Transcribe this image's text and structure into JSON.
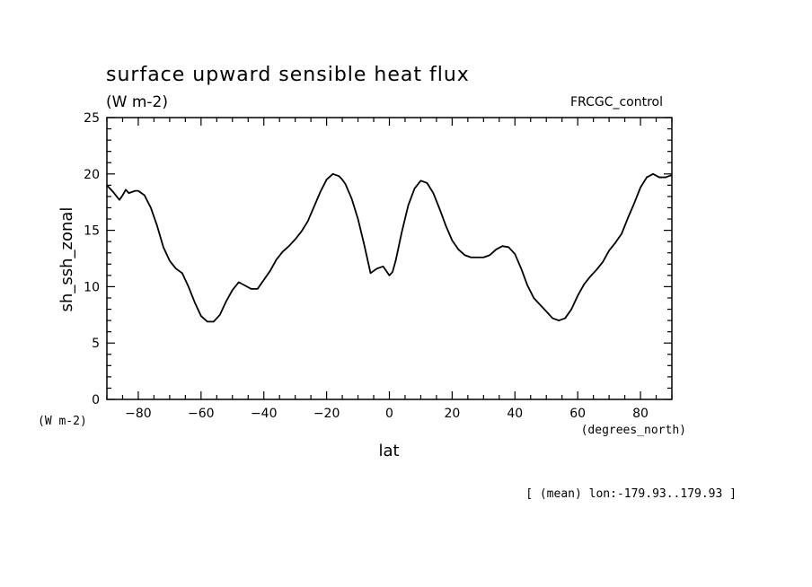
{
  "chart_data": {
    "type": "line",
    "title": "surface upward sensible heat flux",
    "subtitle": "(W m-2)",
    "annotation_right": "FRCGC_control",
    "ylabel": "sh_ssh_zonal",
    "yunit": "(W m-2)",
    "xlabel": "lat",
    "xunit": "(degrees_north)",
    "footnote": "[ (mean) lon:-179.93..179.93 ]",
    "xlim": [
      -90,
      90
    ],
    "ylim": [
      0,
      25
    ],
    "x_ticks": [
      -80,
      -60,
      -40,
      -20,
      0,
      20,
      40,
      60,
      80
    ],
    "y_ticks": [
      0,
      5,
      10,
      15,
      20,
      25
    ],
    "grid": false,
    "series": [
      {
        "x": [
          -90,
          -88,
          -86,
          -85,
          -84,
          -83,
          -82,
          -81,
          -80,
          -78,
          -76,
          -74,
          -72,
          -70,
          -68,
          -66,
          -64,
          -62,
          -60,
          -58,
          -56,
          -54,
          -52,
          -50,
          -48,
          -46,
          -44,
          -42,
          -40,
          -38,
          -36,
          -34,
          -32,
          -30,
          -28,
          -26,
          -24,
          -22,
          -20,
          -18,
          -16,
          -15,
          -14,
          -12,
          -10,
          -8,
          -6,
          -4,
          -2,
          0,
          1,
          2,
          4,
          6,
          8,
          10,
          12,
          14,
          16,
          18,
          20,
          22,
          24,
          26,
          28,
          30,
          32,
          34,
          36,
          38,
          40,
          42,
          44,
          46,
          48,
          50,
          52,
          54,
          56,
          58,
          60,
          62,
          64,
          66,
          68,
          70,
          72,
          74,
          76,
          78,
          80,
          82,
          84,
          86,
          88,
          90
        ],
        "y": [
          19.0,
          18.4,
          17.7,
          18.1,
          18.6,
          18.3,
          18.4,
          18.5,
          18.5,
          18.1,
          17.0,
          15.4,
          13.5,
          12.3,
          11.6,
          11.2,
          10.0,
          8.6,
          7.4,
          6.9,
          6.9,
          7.5,
          8.7,
          9.7,
          10.4,
          10.1,
          9.8,
          9.8,
          10.6,
          11.4,
          12.4,
          13.1,
          13.6,
          14.2,
          14.9,
          15.8,
          17.1,
          18.4,
          19.5,
          20.0,
          19.8,
          19.5,
          19.1,
          17.8,
          16.0,
          13.7,
          11.2,
          11.6,
          11.8,
          11.0,
          11.3,
          12.3,
          14.9,
          17.2,
          18.7,
          19.4,
          19.2,
          18.3,
          16.9,
          15.4,
          14.1,
          13.3,
          12.8,
          12.6,
          12.6,
          12.6,
          12.8,
          13.3,
          13.6,
          13.5,
          12.9,
          11.6,
          10.1,
          9.0,
          8.4,
          7.8,
          7.2,
          7.0,
          7.2,
          8.0,
          9.2,
          10.2,
          10.9,
          11.5,
          12.2,
          13.2,
          13.9,
          14.7,
          16.1,
          17.4,
          18.8,
          19.7,
          20.0,
          19.7,
          19.7,
          19.9
        ]
      }
    ]
  }
}
